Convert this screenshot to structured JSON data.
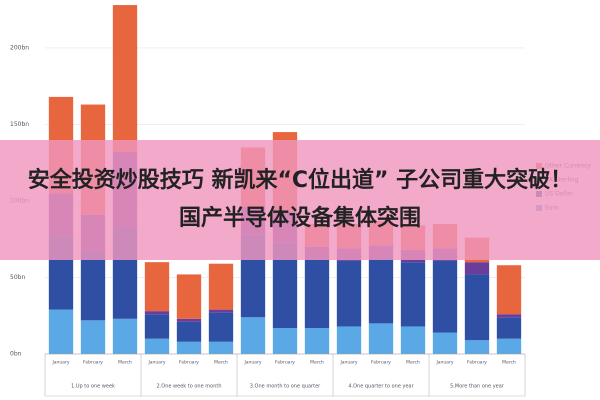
{
  "chart_data": {
    "type": "bar",
    "stacked": true,
    "title": "安全投资炒股技巧 新凯来“C位出道” 子公司重大突破！国产半导体设备集体突围",
    "categories": [
      "January",
      "February",
      "March",
      "January",
      "February",
      "March",
      "January",
      "February",
      "March",
      "January",
      "February",
      "March",
      "January",
      "February",
      "March"
    ],
    "groups": [
      "1.Up to one week",
      "2.One week to one month",
      "3.One month to one quarter",
      "4.One quarter to one year",
      "5.More than one year"
    ],
    "series": [
      {
        "name": "Euro",
        "color": "#5aa9e6",
        "values": [
          29,
          22,
          23,
          10,
          8,
          8,
          24,
          17,
          17,
          18,
          20,
          18,
          14,
          9,
          10
        ]
      },
      {
        "name": "US Dollar",
        "color": "#2e4fa3",
        "values": [
          48,
          45,
          60,
          16,
          13,
          19,
          54,
          56,
          45,
          43,
          43,
          42,
          47,
          43,
          14
        ]
      },
      {
        "name": "UK Sterling",
        "color": "#6a3d9a",
        "values": [
          28,
          24,
          49,
          2,
          2,
          2,
          18,
          20,
          8,
          8,
          8,
          8,
          8,
          8,
          2
        ]
      },
      {
        "name": "Other Currency",
        "color": "#e8663d",
        "values": [
          63,
          72,
          96,
          32,
          29,
          30,
          39,
          52,
          15,
          16,
          16,
          16,
          16,
          16,
          32
        ]
      }
    ],
    "ylim": [
      0,
      230
    ],
    "yticks": [
      {
        "value": 0,
        "label": "0bn"
      },
      {
        "value": 50,
        "label": "50bn"
      },
      {
        "value": 100,
        "label": "100bn"
      },
      {
        "value": 150,
        "label": "150bn"
      },
      {
        "value": 200,
        "label": "200bn"
      }
    ],
    "grid": true
  }
}
